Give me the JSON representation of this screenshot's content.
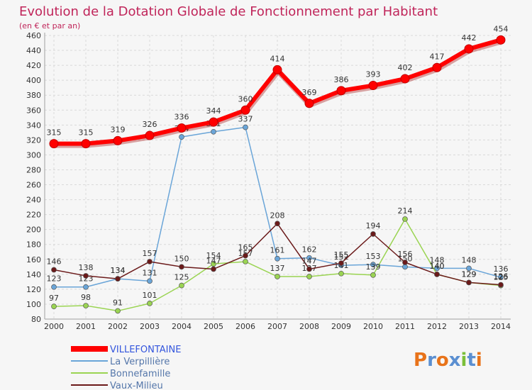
{
  "chart_data": {
    "type": "line",
    "title": "Evolution de la Dotation Globale de Fonctionnement par Habitant",
    "subtitle": "(en € et par an)",
    "xlabel": "",
    "ylabel": "",
    "ylim": [
      80,
      460
    ],
    "ytick_step": 20,
    "grid": true,
    "legend_position": "bottom-left",
    "categories": [
      "2000",
      "2001",
      "2002",
      "2003",
      "2004",
      "2005",
      "2006",
      "2007",
      "2008",
      "2009",
      "2010",
      "2011",
      "2012",
      "2013",
      "2014"
    ],
    "series": [
      {
        "name": "VILLEFONTAINE",
        "color": "#ff0000",
        "emphasis": true,
        "labelled": true,
        "values": [
          315,
          315,
          319,
          326,
          336,
          344,
          360,
          414,
          369,
          386,
          393,
          402,
          417,
          442,
          454
        ]
      },
      {
        "name": "La Verpillière",
        "color": "#6aa5d8",
        "labelled": true,
        "values": [
          123,
          123,
          134,
          131,
          324,
          331,
          337,
          161,
          162,
          152,
          153,
          150,
          148,
          148,
          136
        ]
      },
      {
        "name": "Bonnefamille",
        "color": "#9ad452",
        "labelled": true,
        "values": [
          97,
          98,
          91,
          101,
          125,
          154,
          157,
          137,
          137,
          141,
          139,
          214,
          140,
          129,
          125
        ]
      },
      {
        "name": "Vaux-Milieu",
        "color": "#6b1a1a",
        "labelled": true,
        "values": [
          146,
          138,
          134,
          157,
          150,
          147,
          165,
          208,
          147,
          155,
          194,
          156,
          140,
          129,
          126
        ]
      }
    ]
  },
  "logo": {
    "text": "Proxiti"
  }
}
